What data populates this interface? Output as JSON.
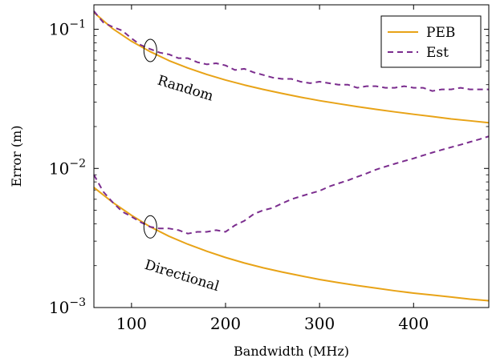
{
  "chart_data": {
    "type": "line",
    "xlabel": "Bandwidth (MHz)",
    "ylabel": "Error (m)",
    "xlim": [
      60,
      480
    ],
    "ylim": [
      0.001,
      0.15
    ],
    "yscale": "log",
    "x_ticks": [
      100,
      200,
      300,
      400
    ],
    "x_tick_labels": [
      "100",
      "200",
      "300",
      "400"
    ],
    "y_ticks": [
      0.001,
      0.01,
      0.1
    ],
    "y_tick_labels": [
      {
        "base": "10",
        "exp": "−3"
      },
      {
        "base": "10",
        "exp": "−2"
      },
      {
        "base": "10",
        "exp": "−1"
      }
    ],
    "grid": false,
    "legend": {
      "placement": "top-right",
      "entries": [
        {
          "label": "PEB",
          "style": "solid",
          "color": "#e8a317"
        },
        {
          "label": "Est",
          "style": "dashed",
          "color": "#7b2d8e"
        }
      ]
    },
    "groups": [
      {
        "label": "Random",
        "marker_x": 120,
        "peb": {
          "x": [
            60,
            80,
            100,
            120,
            140,
            160,
            180,
            200,
            220,
            240,
            260,
            280,
            300,
            320,
            340,
            360,
            380,
            400,
            420,
            440,
            460,
            480
          ],
          "y": [
            0.132,
            0.101,
            0.082,
            0.069,
            0.0595,
            0.0527,
            0.0474,
            0.0432,
            0.0398,
            0.037,
            0.0346,
            0.0325,
            0.0307,
            0.0292,
            0.0278,
            0.0266,
            0.0255,
            0.0245,
            0.0236,
            0.0227,
            0.022,
            0.0213
          ]
        },
        "est": {
          "x": [
            60,
            70,
            80,
            90,
            100,
            110,
            120,
            130,
            140,
            150,
            160,
            170,
            180,
            190,
            200,
            210,
            220,
            230,
            240,
            250,
            260,
            270,
            280,
            290,
            300,
            310,
            320,
            330,
            340,
            350,
            360,
            370,
            380,
            390,
            400,
            410,
            420,
            430,
            440,
            450,
            460,
            470,
            480
          ],
          "y": [
            0.135,
            0.112,
            0.104,
            0.098,
            0.086,
            0.077,
            0.072,
            0.068,
            0.066,
            0.062,
            0.062,
            0.058,
            0.056,
            0.057,
            0.055,
            0.051,
            0.052,
            0.049,
            0.047,
            0.045,
            0.044,
            0.044,
            0.042,
            0.041,
            0.042,
            0.041,
            0.04,
            0.04,
            0.038,
            0.039,
            0.039,
            0.038,
            0.038,
            0.039,
            0.038,
            0.038,
            0.036,
            0.037,
            0.037,
            0.038,
            0.037,
            0.037,
            0.037
          ]
        }
      },
      {
        "label": "Directional",
        "marker_x": 120,
        "peb": {
          "x": [
            60,
            80,
            100,
            120,
            140,
            160,
            180,
            200,
            220,
            240,
            260,
            280,
            300,
            320,
            340,
            360,
            380,
            400,
            420,
            440,
            460,
            480
          ],
          "y": [
            0.0073,
            0.0057,
            0.0046,
            0.0038,
            0.00325,
            0.00285,
            0.00254,
            0.00229,
            0.00209,
            0.00193,
            0.0018,
            0.00169,
            0.00159,
            0.00151,
            0.00144,
            0.00138,
            0.00132,
            0.00127,
            0.00123,
            0.00119,
            0.00115,
            0.00112
          ]
        },
        "est": {
          "x": [
            60,
            70,
            80,
            90,
            100,
            110,
            120,
            130,
            140,
            150,
            160,
            170,
            180,
            190,
            200,
            210,
            220,
            230,
            240,
            250,
            260,
            270,
            280,
            290,
            300,
            310,
            320,
            330,
            340,
            350,
            360,
            370,
            380,
            390,
            400,
            410,
            420,
            430,
            440,
            450,
            460,
            470,
            480
          ],
          "y": [
            0.009,
            0.0068,
            0.0057,
            0.0049,
            0.0045,
            0.0041,
            0.0038,
            0.0037,
            0.0037,
            0.0036,
            0.0034,
            0.0035,
            0.0035,
            0.0036,
            0.0035,
            0.0039,
            0.0042,
            0.0047,
            0.005,
            0.0052,
            0.0056,
            0.006,
            0.0063,
            0.0066,
            0.0069,
            0.0074,
            0.0078,
            0.0082,
            0.0087,
            0.0092,
            0.0098,
            0.0103,
            0.0108,
            0.0113,
            0.0118,
            0.0124,
            0.013,
            0.0136,
            0.0142,
            0.0148,
            0.0155,
            0.0162,
            0.017
          ]
        }
      }
    ]
  }
}
